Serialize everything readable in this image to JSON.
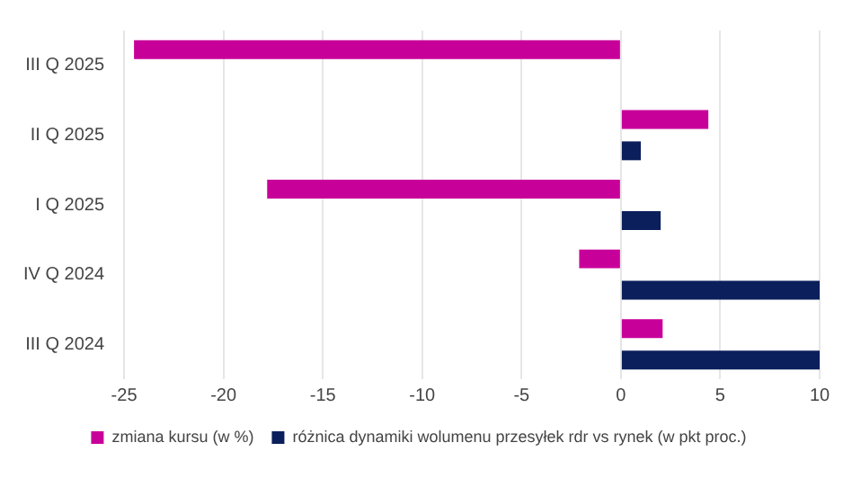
{
  "chart_data": {
    "type": "bar",
    "orientation": "horizontal",
    "categories": [
      "III Q 2025",
      "II Q 2025",
      "I Q 2025",
      "IV Q 2024",
      "III Q 2024"
    ],
    "series": [
      {
        "name": "zmiana kursu (w %)",
        "color": "#c8009a",
        "values": [
          -24.5,
          4.4,
          -17.8,
          -2.1,
          2.1
        ]
      },
      {
        "name": "różnica dynamiki wolumenu przesyłek rdr vs rynek (w pkt proc.)",
        "color": "#0b1f5c",
        "values": [
          null,
          1.0,
          2.0,
          10,
          10
        ]
      }
    ],
    "xlim": [
      -25,
      10
    ],
    "xticks": [
      -25,
      -20,
      -15,
      -10,
      -5,
      0,
      5,
      10
    ],
    "grid": "x",
    "legend": "bottom"
  }
}
